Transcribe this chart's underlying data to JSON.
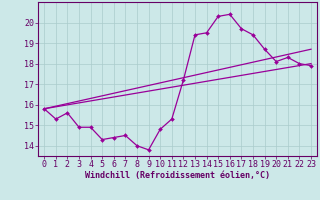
{
  "xlabel": "Windchill (Refroidissement éolien,°C)",
  "background_color": "#cce8e8",
  "line_color": "#990099",
  "grid_color": "#aacccc",
  "text_color": "#660066",
  "spine_color": "#660066",
  "xlim": [
    -0.5,
    23.5
  ],
  "ylim": [
    13.5,
    21.0
  ],
  "yticks": [
    14,
    15,
    16,
    17,
    18,
    19,
    20
  ],
  "xticks": [
    0,
    1,
    2,
    3,
    4,
    5,
    6,
    7,
    8,
    9,
    10,
    11,
    12,
    13,
    14,
    15,
    16,
    17,
    18,
    19,
    20,
    21,
    22,
    23
  ],
  "hours": [
    0,
    1,
    2,
    3,
    4,
    5,
    6,
    7,
    8,
    9,
    10,
    11,
    12,
    13,
    14,
    15,
    16,
    17,
    18,
    19,
    20,
    21,
    22,
    23
  ],
  "temp_line": [
    15.8,
    15.3,
    15.6,
    14.9,
    14.9,
    14.3,
    14.4,
    14.5,
    14.0,
    13.8,
    14.8,
    15.3,
    17.2,
    19.4,
    19.5,
    20.3,
    20.4,
    19.7,
    19.4,
    18.7,
    18.1,
    18.3,
    18.0,
    17.9
  ],
  "trend1_x": [
    0,
    23
  ],
  "trend1_y": [
    15.8,
    18.7
  ],
  "trend2_x": [
    0,
    23
  ],
  "trend2_y": [
    15.8,
    18.0
  ],
  "tick_fontsize": 6,
  "xlabel_fontsize": 6
}
